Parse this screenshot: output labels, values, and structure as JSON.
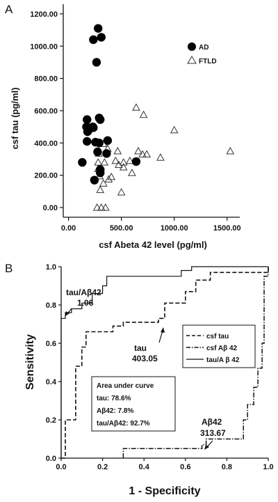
{
  "chart_data": [
    {
      "panel_label": "A",
      "type": "scatter",
      "xlabel": "csf Abeta 42 level (pg/ml)",
      "ylabel": "csf tau (pg/ml)",
      "xlim": [
        -50,
        1620
      ],
      "ylim": [
        -60,
        1260
      ],
      "xticks": [
        0,
        500,
        1000,
        1500
      ],
      "xtick_labels": [
        "0.00",
        "500.00",
        "1000.00",
        "1500.00"
      ],
      "yticks": [
        0,
        200,
        400,
        600,
        800,
        1000,
        1200
      ],
      "ytick_labels": [
        "0.00",
        "200.00",
        "400.00",
        "600.00",
        "800.00",
        "1000.00",
        "1200.00"
      ],
      "legend_position": "top-right",
      "series": [
        {
          "name": "AD",
          "marker": "filled-circle",
          "points": [
            [
              280,
              1110
            ],
            [
              235,
              1040
            ],
            [
              310,
              1055
            ],
            [
              265,
              900
            ],
            [
              175,
              545
            ],
            [
              290,
              555
            ],
            [
              300,
              545
            ],
            [
              170,
              500
            ],
            [
              205,
              490
            ],
            [
              180,
              470
            ],
            [
              235,
              495
            ],
            [
              175,
              410
            ],
            [
              255,
              405
            ],
            [
              370,
              415
            ],
            [
              290,
              400
            ],
            [
              275,
              345
            ],
            [
              360,
              335
            ],
            [
              300,
              235
            ],
            [
              130,
              280
            ],
            [
              300,
              215
            ],
            [
              245,
              170
            ],
            [
              640,
              285
            ],
            [
              230,
              500
            ]
          ]
        },
        {
          "name": "FTLD",
          "marker": "open-triangle",
          "points": [
            [
              640,
              620
            ],
            [
              710,
              575
            ],
            [
              1000,
              480
            ],
            [
              1530,
              350
            ],
            [
              330,
              395
            ],
            [
              370,
              365
            ],
            [
              465,
              350
            ],
            [
              285,
              335
            ],
            [
              340,
              280
            ],
            [
              445,
              290
            ],
            [
              475,
              265
            ],
            [
              520,
              280
            ],
            [
              520,
              250
            ],
            [
              580,
              290
            ],
            [
              660,
              350
            ],
            [
              700,
              330
            ],
            [
              740,
              330
            ],
            [
              870,
              310
            ],
            [
              280,
              280
            ],
            [
              280,
              240
            ],
            [
              295,
              195
            ],
            [
              380,
              175
            ],
            [
              405,
              190
            ],
            [
              330,
              150
            ],
            [
              300,
              110
            ],
            [
              600,
              215
            ],
            [
              500,
              95
            ],
            [
              270,
              0
            ],
            [
              310,
              0
            ],
            [
              350,
              0
            ]
          ]
        }
      ]
    },
    {
      "panel_label": "B",
      "type": "line",
      "xlabel": "1 - Specificity",
      "ylabel": "Sensitivity",
      "xlim": [
        0,
        1
      ],
      "ylim": [
        0,
        1
      ],
      "xticks": [
        0,
        0.2,
        0.4,
        0.6,
        0.8,
        1
      ],
      "xtick_labels": [
        "0.0",
        "0.2",
        "0.4",
        "0.6",
        "0.8",
        "1.0"
      ],
      "yticks": [
        0,
        0.2,
        0.4,
        0.6,
        0.8,
        1
      ],
      "ytick_labels": [
        "0.0",
        "0.2",
        "0.4",
        "0.6",
        "0.8",
        "1.0"
      ],
      "legend_position": "right",
      "series": [
        {
          "name": "csf tau",
          "style": "dashed",
          "points": [
            [
              0,
              0
            ],
            [
              0.02,
              0
            ],
            [
              0.02,
              0.05
            ],
            [
              0.02,
              0.2
            ],
            [
              0.07,
              0.2
            ],
            [
              0.07,
              0.48
            ],
            [
              0.1,
              0.48
            ],
            [
              0.1,
              0.58
            ],
            [
              0.12,
              0.58
            ],
            [
              0.12,
              0.66
            ],
            [
              0.25,
              0.66
            ],
            [
              0.25,
              0.69
            ],
            [
              0.3,
              0.69
            ],
            [
              0.3,
              0.71
            ],
            [
              0.47,
              0.71
            ],
            [
              0.47,
              0.73
            ],
            [
              0.5,
              0.73
            ],
            [
              0.5,
              0.81
            ],
            [
              0.6,
              0.81
            ],
            [
              0.6,
              0.87
            ],
            [
              0.65,
              0.87
            ],
            [
              0.65,
              0.93
            ],
            [
              0.72,
              0.93
            ],
            [
              0.72,
              0.97
            ],
            [
              1,
              0.97
            ],
            [
              1,
              1
            ]
          ]
        },
        {
          "name": "csf Aβ 42",
          "style": "dash-dot",
          "points": [
            [
              0.3,
              0
            ],
            [
              0.3,
              0.05
            ],
            [
              0.68,
              0.05
            ],
            [
              0.68,
              0.07
            ],
            [
              0.7,
              0.07
            ],
            [
              0.7,
              0.1
            ],
            [
              0.88,
              0.1
            ],
            [
              0.88,
              0.2
            ],
            [
              0.9,
              0.2
            ],
            [
              0.9,
              0.28
            ],
            [
              0.93,
              0.28
            ],
            [
              0.93,
              0.37
            ],
            [
              0.95,
              0.37
            ],
            [
              0.95,
              0.47
            ],
            [
              0.97,
              0.47
            ],
            [
              0.97,
              0.6
            ],
            [
              0.98,
              0.6
            ],
            [
              0.98,
              0.95
            ],
            [
              1,
              0.95
            ],
            [
              1,
              1
            ]
          ]
        },
        {
          "name": "tau/A β 42",
          "style": "solid",
          "points": [
            [
              0,
              0
            ],
            [
              0,
              0.73
            ],
            [
              0.02,
              0.73
            ],
            [
              0.02,
              0.76
            ],
            [
              0.05,
              0.76
            ],
            [
              0.05,
              0.78
            ],
            [
              0.1,
              0.78
            ],
            [
              0.1,
              0.81
            ],
            [
              0.15,
              0.81
            ],
            [
              0.15,
              0.86
            ],
            [
              0.2,
              0.86
            ],
            [
              0.2,
              0.9
            ],
            [
              0.22,
              0.9
            ],
            [
              0.22,
              0.95
            ],
            [
              0.58,
              0.95
            ],
            [
              0.58,
              0.98
            ],
            [
              0.63,
              0.98
            ],
            [
              0.63,
              1
            ],
            [
              1,
              1
            ]
          ]
        }
      ],
      "annotations": {
        "tauAb42": {
          "name": "tau/Aβ42",
          "value": "1.06",
          "x": 0.02,
          "y": 0.76
        },
        "tau": {
          "name": "tau",
          "value": "403.05",
          "x": 0.5,
          "y": 0.73
        },
        "ab42": {
          "name": "Aβ42",
          "value": "313.67",
          "x": 0.7,
          "y": 0.08
        }
      },
      "auc_box": {
        "heading": "Area under curve",
        "lines": [
          "tau: 78.6%",
          "Aβ42: 7.8%",
          "tau/Aβ42: 92.7%"
        ]
      }
    }
  ]
}
